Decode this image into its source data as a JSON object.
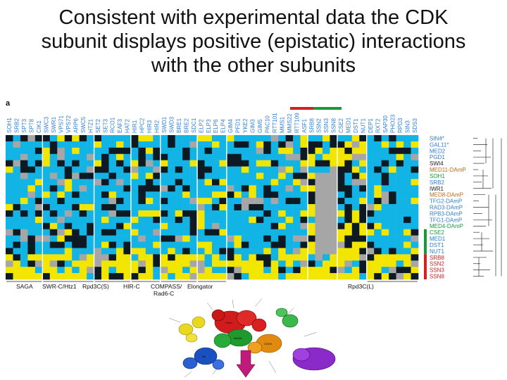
{
  "slide": {
    "title_lines": [
      "Consistent with experimental data the CDK",
      "subunit displays positive (epistatic) interactions",
      "with the other subunits"
    ]
  },
  "heatmap": {
    "panel_label": "a",
    "column_labels": [
      "SOH1",
      "SRB2",
      "SPT3",
      "SPT8",
      "CIK1",
      "SWC3",
      "SWR1",
      "VPS71",
      "VPS72",
      "ARP6",
      "SWC5",
      "HTZ1",
      "SET2",
      "SET3",
      "RCO1",
      "EAF3",
      "HAT2",
      "HIR1",
      "HPC2",
      "HIR3",
      "HIR2",
      "SWD1",
      "SWD3",
      "BRE1",
      "BRE2",
      "SDC1",
      "ELP2",
      "ELP3",
      "ELP6",
      "ELP4",
      "GIM4",
      "PFD1",
      "YKE2",
      "GIM3",
      "GIM5",
      "PAC10",
      "RTT101",
      "MMS1",
      "MMS22",
      "RTT109",
      "ASF1",
      "SRB8",
      "SSN2",
      "SSN3",
      "SSN8",
      "CSE2",
      "MED1",
      "DST1",
      "NUT1",
      "DEP1",
      "RXT2",
      "SAP30",
      "PHO23",
      "RPD3",
      "SIN3",
      "SDS3"
    ],
    "row_labels": [
      {
        "label": "SIN4*",
        "color": "blue"
      },
      {
        "label": "GAL11*",
        "color": "blue"
      },
      {
        "label": "MED2",
        "color": "blue"
      },
      {
        "label": "PGD1",
        "color": "blue"
      },
      {
        "label": "SWI4",
        "color": "black"
      },
      {
        "label": "MED11-DAmP",
        "color": "orange"
      },
      {
        "label": "SOH1",
        "color": "green"
      },
      {
        "label": "SRB2",
        "color": "blue"
      },
      {
        "label": "IWR1",
        "color": "black"
      },
      {
        "label": "MED8-DAmP",
        "color": "orange"
      },
      {
        "label": "TFG2-DAmP",
        "color": "blue"
      },
      {
        "label": "RAD3-DAmP",
        "color": "blue"
      },
      {
        "label": "RPB3-DAmP",
        "color": "blue"
      },
      {
        "label": "TFG1-DAmP",
        "color": "blue"
      },
      {
        "label": "MED4-DAmP",
        "color": "green"
      },
      {
        "label": "CSE2",
        "color": "green"
      },
      {
        "label": "MED1",
        "color": "blue"
      },
      {
        "label": "DST1",
        "color": "blue"
      },
      {
        "label": "NUT1",
        "color": "blue"
      },
      {
        "label": "SRB8",
        "color": "red"
      },
      {
        "label": "SSN2",
        "color": "red"
      },
      {
        "label": "SSN3",
        "color": "red"
      },
      {
        "label": "SSN8",
        "color": "red"
      }
    ],
    "group_labels": [
      "SAGA",
      "SWR-C/Htz1",
      "Rpd3C(S)",
      "HIR-C",
      "COMPASS/",
      "Elongator",
      "Rpd3C(L)"
    ],
    "group_label_second_line": "Rad6-C",
    "colors": {
      "positive": "#f2e600",
      "negative": "#12b4e6",
      "neutral": "#0d1a24",
      "missing": "#a6a6a6",
      "label_blue": "#2f7fd0",
      "label_green": "#1a9a3a",
      "label_orange": "#c06a14",
      "label_red": "#d42020",
      "label_black": "#222222"
    }
  },
  "complex_diagram": {
    "module_labels": [
      "Head",
      "Middle",
      "Tail",
      "CDK8"
    ]
  }
}
